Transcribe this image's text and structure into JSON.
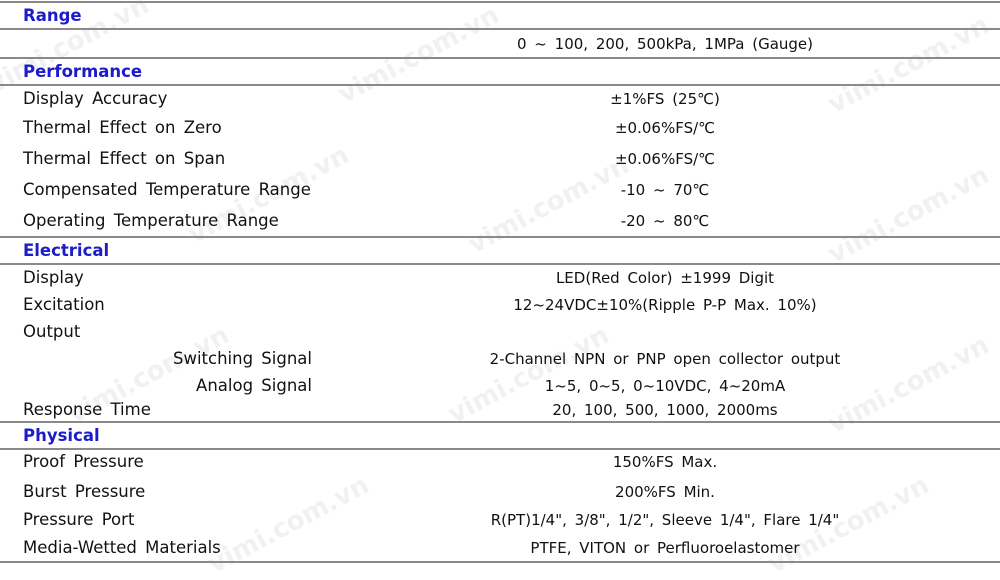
{
  "watermark": "vimi.com.vn",
  "sections": {
    "range": {
      "title": "Range",
      "value": "0 ~ 100, 200, 500kPa, 1MPa (Gauge)"
    },
    "performance": {
      "title": "Performance",
      "rows": [
        {
          "label": "Display Accuracy",
          "value": "±1%FS (25℃)"
        },
        {
          "label": "Thermal Effect on Zero",
          "value": "±0.06%FS/℃"
        },
        {
          "label": "Thermal Effect on Span",
          "value": "±0.06%FS/℃"
        },
        {
          "label": "Compensated Temperature Range",
          "value": "-10 ~ 70℃"
        },
        {
          "label": "Operating Temperature Range",
          "value": "-20 ~ 80℃"
        }
      ]
    },
    "electrical": {
      "title": "Electrical",
      "rows": [
        {
          "label": "Display",
          "value": "LED(Red Color) ±1999 Digit"
        },
        {
          "label": "Excitation",
          "value": "12~24VDC±10%(Ripple P-P Max. 10%)"
        },
        {
          "label": "Output",
          "value": ""
        },
        {
          "label": "Switching Signal",
          "value": "2-Channel NPN or PNP open collector output"
        },
        {
          "label": "Analog Signal",
          "value": "1~5, 0~5, 0~10VDC, 4~20mA"
        },
        {
          "label": "Response Time",
          "value": "20, 100, 500, 1000, 2000ms"
        }
      ]
    },
    "physical": {
      "title": "Physical",
      "rows": [
        {
          "label": "Proof Pressure",
          "value": "150%FS Max."
        },
        {
          "label": "Burst Pressure",
          "value": "200%FS Min."
        },
        {
          "label": "Pressure Port",
          "value": "R(PT)1/4\", 3/8\", 1/2\", Sleeve 1/4\", Flare 1/4\""
        },
        {
          "label": "Media-Wetted Materials",
          "value": "PTFE, VITON or Perfluoroelastomer"
        }
      ]
    }
  }
}
